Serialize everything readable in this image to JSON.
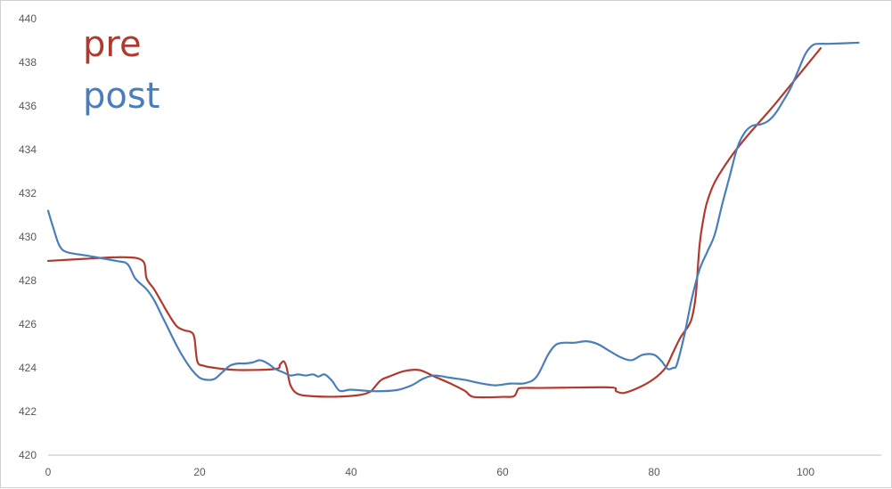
{
  "chart_data": {
    "type": "line",
    "title": "",
    "xlabel": "",
    "ylabel": "",
    "xlim": [
      0,
      110
    ],
    "ylim": [
      420,
      440
    ],
    "xticks": [
      0,
      20,
      40,
      60,
      80,
      100
    ],
    "yticks": [
      420,
      422,
      424,
      426,
      428,
      430,
      432,
      434,
      436,
      438,
      440
    ],
    "grid": false,
    "legend_placement": "top-left",
    "series": [
      {
        "name": "pre",
        "color": "#b03a2e",
        "x": [
          0,
          5,
          10,
          12.5,
          13,
          14,
          15,
          16,
          17,
          18,
          18.8,
          19.3,
          19.7,
          20.5,
          22,
          25,
          30,
          30.6,
          31.1,
          31.5,
          32,
          33,
          35,
          38,
          41,
          42.5,
          43.3,
          44,
          45,
          47,
          49,
          51,
          53,
          55,
          56,
          58,
          60,
          61.5,
          62,
          62.5,
          65,
          70,
          74.5,
          75,
          76,
          78,
          80,
          81.5,
          82.5,
          83.5,
          84.5,
          85,
          85.5,
          86,
          86.5,
          87,
          88,
          90,
          92,
          94,
          96,
          98,
          100,
          102
        ],
        "y": [
          428.9,
          429.0,
          429.07,
          428.9,
          428.1,
          427.6,
          427.0,
          426.4,
          425.9,
          425.72,
          425.65,
          425.4,
          424.3,
          424.1,
          424.0,
          423.9,
          423.95,
          424.15,
          424.3,
          424.0,
          423.2,
          422.8,
          422.7,
          422.68,
          422.75,
          422.9,
          423.2,
          423.45,
          423.6,
          423.85,
          423.9,
          423.6,
          423.3,
          422.95,
          422.68,
          422.65,
          422.67,
          422.7,
          423.0,
          423.08,
          423.08,
          423.1,
          423.1,
          422.93,
          422.85,
          423.1,
          423.5,
          424.0,
          424.7,
          425.4,
          425.9,
          426.3,
          427.3,
          429.6,
          430.8,
          431.6,
          432.5,
          433.6,
          434.5,
          435.3,
          436.1,
          436.95,
          437.8,
          438.65
        ]
      },
      {
        "name": "post",
        "color": "#4a7ebb",
        "x": [
          0,
          0.7,
          1.5,
          2.5,
          5,
          9,
          10.5,
          11.5,
          13,
          14,
          15,
          16,
          17,
          18,
          19,
          20,
          21,
          22,
          23,
          24,
          25,
          26,
          27,
          28,
          29,
          30,
          31,
          32,
          33,
          34,
          35,
          35.7,
          36.5,
          37.5,
          38.5,
          40,
          43,
          46,
          48,
          49.5,
          51,
          53,
          55,
          57,
          59,
          61,
          63,
          64.5,
          66,
          67,
          68,
          69.5,
          71,
          72.5,
          74,
          75.5,
          77,
          78.5,
          80,
          81,
          81.8,
          82.5,
          83,
          84,
          85,
          86,
          87,
          88,
          89,
          90,
          91,
          92,
          93,
          94,
          95,
          96,
          97,
          98,
          99,
          100,
          101,
          102,
          103,
          107
        ],
        "y": [
          431.2,
          430.4,
          429.6,
          429.3,
          429.15,
          428.9,
          428.75,
          428.1,
          427.6,
          427.1,
          426.4,
          425.7,
          425.0,
          424.4,
          423.9,
          423.55,
          423.45,
          423.5,
          423.8,
          424.1,
          424.2,
          424.2,
          424.25,
          424.35,
          424.2,
          423.95,
          423.8,
          423.65,
          423.7,
          423.65,
          423.7,
          423.6,
          423.7,
          423.4,
          422.95,
          423.0,
          422.93,
          422.98,
          423.2,
          423.5,
          423.65,
          423.55,
          423.45,
          423.3,
          423.2,
          423.28,
          423.3,
          423.6,
          424.6,
          425.05,
          425.15,
          425.15,
          425.22,
          425.1,
          424.8,
          424.5,
          424.35,
          424.6,
          424.6,
          424.3,
          423.95,
          424.0,
          424.15,
          425.5,
          427.2,
          428.5,
          429.3,
          430.1,
          431.5,
          432.8,
          434.1,
          434.8,
          435.1,
          435.15,
          435.3,
          435.65,
          436.2,
          436.8,
          437.6,
          438.4,
          438.8,
          438.85,
          438.85,
          438.9
        ]
      }
    ]
  }
}
